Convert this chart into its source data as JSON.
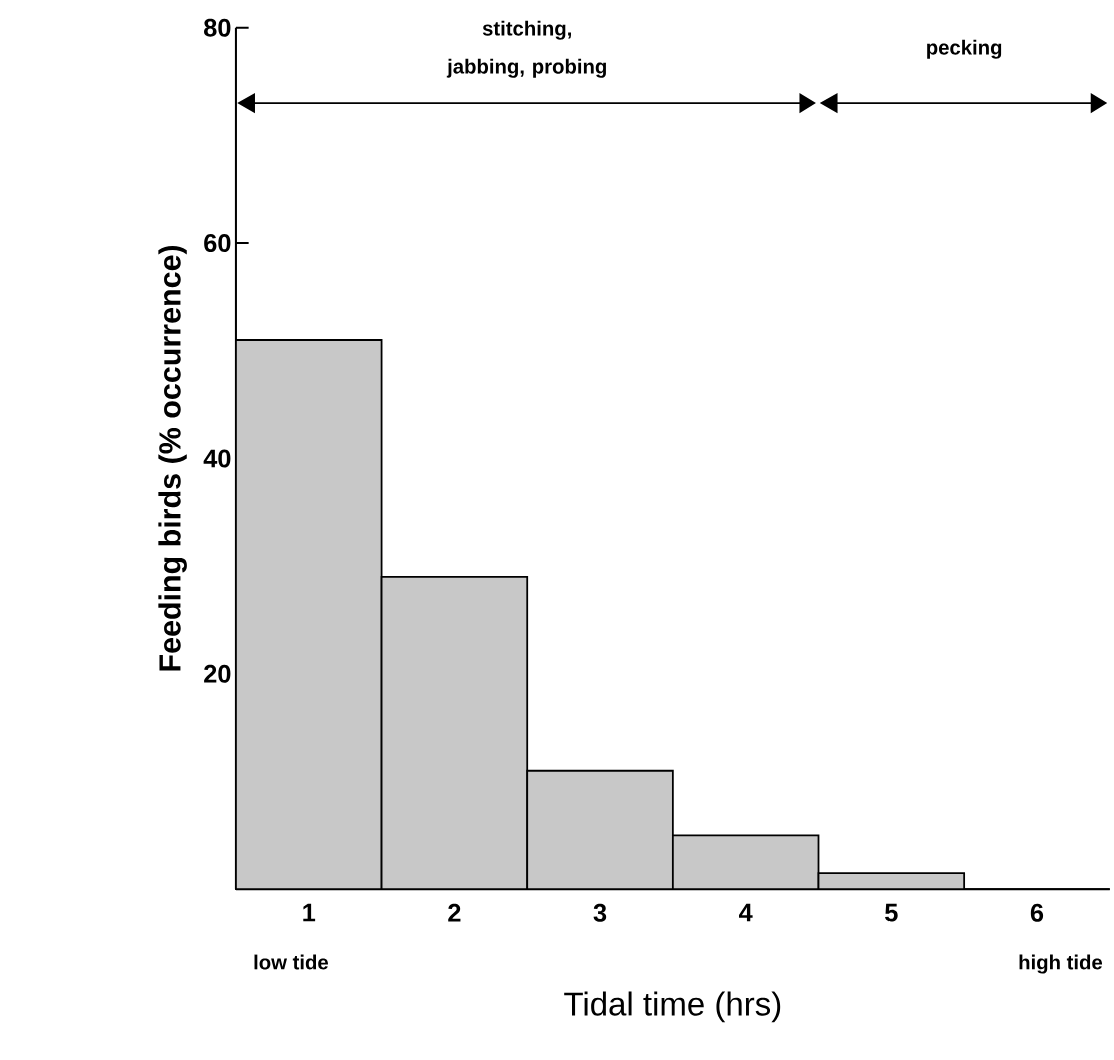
{
  "chart_data": {
    "type": "histogram",
    "xlabel": "Tidal time (hrs)",
    "ylabel": "Feeding birds (% occurrence)",
    "bins": [
      0.5,
      1.5,
      2.5,
      3.5,
      4.5,
      5.5,
      6.5
    ],
    "values": [
      51,
      29,
      11,
      5,
      1.5,
      0
    ],
    "color": "#c8c8c8",
    "xlim": [
      0.5,
      6.5
    ],
    "xticks": [
      1,
      2,
      3,
      4,
      5,
      6
    ],
    "ylim": [
      0,
      80
    ],
    "yticks": [
      20,
      40,
      60,
      80
    ],
    "annotations": [
      "low tide",
      "high tide",
      "stitching, jabbing, probing",
      "pecking"
    ],
    "grid": false
  }
}
